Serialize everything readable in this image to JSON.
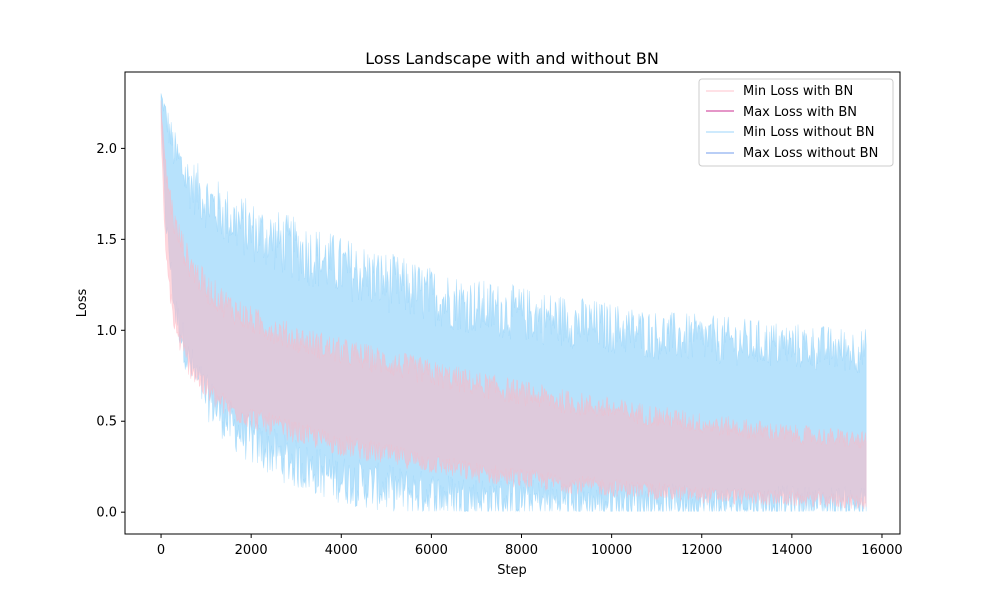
{
  "chart_data": {
    "type": "area",
    "title": "Loss Landscape with and without BN",
    "xlabel": "Step",
    "ylabel": "Loss",
    "xlim": [
      -800,
      16400
    ],
    "ylim": [
      -0.12,
      2.42
    ],
    "x_ticks": [
      0,
      2000,
      4000,
      6000,
      8000,
      10000,
      12000,
      14000,
      16000
    ],
    "y_ticks": [
      0.0,
      0.5,
      1.0,
      1.5,
      2.0
    ],
    "legend_position": "top-right",
    "grid": false,
    "bands": [
      {
        "label": "without BN",
        "color": "#87CEFA",
        "x": [
          0,
          100,
          300,
          600,
          1000,
          1500,
          2000,
          3000,
          4000,
          5000,
          6000,
          7000,
          8000,
          9000,
          10000,
          11000,
          12000,
          13000,
          14000,
          15000,
          15650
        ],
        "min": [
          2.2,
          1.6,
          1.1,
          0.8,
          0.6,
          0.45,
          0.35,
          0.22,
          0.14,
          0.09,
          0.06,
          0.04,
          0.03,
          0.025,
          0.02,
          0.02,
          0.015,
          0.015,
          0.015,
          0.015,
          0.015
        ],
        "max": [
          2.3,
          2.2,
          2.0,
          1.85,
          1.75,
          1.65,
          1.58,
          1.48,
          1.38,
          1.3,
          1.22,
          1.16,
          1.12,
          1.08,
          1.04,
          1.0,
          0.98,
          0.96,
          0.94,
          0.92,
          0.91
        ]
      },
      {
        "label": "with BN",
        "color": "#FFB6C1",
        "x": [
          0,
          100,
          300,
          600,
          1000,
          1500,
          2000,
          3000,
          4000,
          5000,
          6000,
          7000,
          8000,
          9000,
          10000,
          11000,
          12000,
          13000,
          14000,
          15000,
          15650
        ],
        "min": [
          2.1,
          1.4,
          1.0,
          0.8,
          0.65,
          0.55,
          0.5,
          0.42,
          0.35,
          0.3,
          0.25,
          0.2,
          0.17,
          0.14,
          0.12,
          0.1,
          0.08,
          0.07,
          0.06,
          0.05,
          0.04
        ],
        "max": [
          2.25,
          1.9,
          1.6,
          1.4,
          1.25,
          1.15,
          1.07,
          0.97,
          0.9,
          0.84,
          0.78,
          0.72,
          0.67,
          0.62,
          0.58,
          0.54,
          0.5,
          0.47,
          0.44,
          0.42,
          0.4
        ]
      }
    ],
    "series": [
      {
        "name": "Min Loss with BN",
        "color": "#FFB6C1"
      },
      {
        "name": "Max Loss with BN",
        "color": "#C71585"
      },
      {
        "name": "Min Loss without BN",
        "color": "#87CEFA"
      },
      {
        "name": "Max Loss without BN",
        "color": "#6495ED"
      }
    ]
  }
}
